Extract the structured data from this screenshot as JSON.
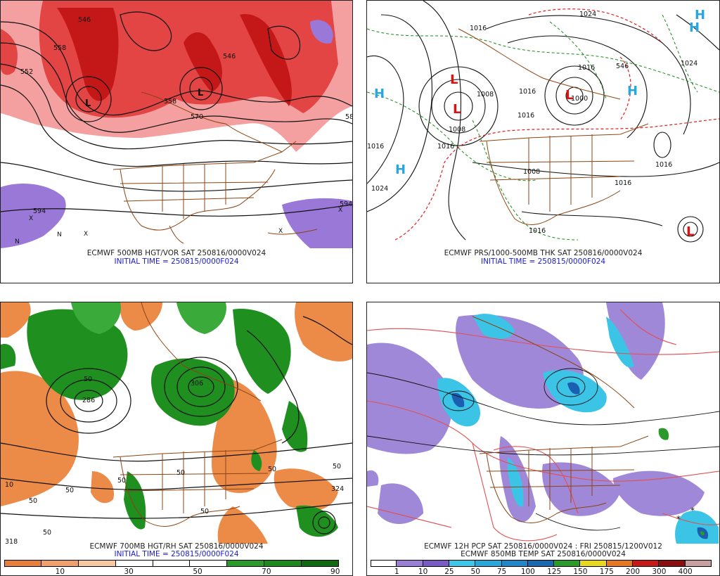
{
  "panels": {
    "p500": {
      "caption": "ECMWF 500MB HGT/VOR SAT 250816/0000V024",
      "initial": "INITIAL TIME = 250815/0000F024",
      "contour_labels": [
        "546",
        "558",
        "552",
        "546",
        "558",
        "570",
        "594",
        "594",
        "58"
      ],
      "hl_marks": [
        "L",
        "L",
        "X",
        "X",
        "N",
        "N",
        "X",
        "X"
      ]
    },
    "pmslp": {
      "caption": "ECMWF PRS/1000-500MB THK SAT 250816/0000V024",
      "initial": "INITIAL TIME = 250815/0000F024",
      "contour_labels": [
        "1024",
        "1016",
        "1016",
        "1008",
        "1024",
        "1016",
        "1016",
        "1016",
        "1016",
        "1000",
        "1008",
        "1016",
        "1008",
        "1016",
        "1016",
        "1024",
        "546"
      ],
      "hl_marks": [
        "H",
        "H",
        "H",
        "L",
        "L",
        "L",
        "H",
        "H",
        "L"
      ]
    },
    "p700": {
      "caption": "ECMWF 700MB HGT/RH SAT 250816/0000V024",
      "initial": "INITIAL TIME = 250815/0000F024",
      "contour_labels": [
        "10",
        "50",
        "50",
        "50",
        "50",
        "50",
        "50",
        "50",
        "324",
        "318",
        "50",
        "50",
        "286",
        "306"
      ],
      "colorbar_ticks": [
        "10",
        "30",
        "50",
        "70",
        "90"
      ],
      "colorbar_colors": [
        "#e8803c",
        "#f0a06c",
        "#f8c8a0",
        "#ffffff",
        "#ffffff",
        "#ffffff",
        "#2a9a2a",
        "#1e8a1e",
        "#0f6a0f"
      ]
    },
    "pcp": {
      "caption": "ECMWF 12H PCP SAT 250816/0000V024 : FRI 250815/1200V012",
      "caption2": "ECMWF 850MB TEMP SAT 250816/0000V024",
      "colorbar_ticks": [
        "1",
        "10",
        "25",
        "50",
        "75",
        "100",
        "125",
        "150",
        "175",
        "200",
        "300",
        "400"
      ],
      "colorbar_colors": [
        "#ffffff",
        "#9b7fd4",
        "#7a5bc4",
        "#3ec8e8",
        "#28a8d8",
        "#2088c8",
        "#1a68b0",
        "#2a9a2a",
        "#e8d820",
        "#e87820",
        "#c81818",
        "#8a0e0e",
        "#c8a0a0"
      ]
    }
  },
  "colors": {
    "vorticity_red": "#d42020",
    "vorticity_pink": "#f4a0a0",
    "vorticity_purple": "#8a60d0",
    "rh_green": "#1e8a1e",
    "rh_orange": "#e8803c",
    "borders_brown": "#8b4513",
    "precip_cyan": "#40c8e8",
    "precip_purple": "#9b7fd4",
    "temp_red": "#e05050",
    "high_blue": "#29a8e0",
    "low_red": "#e01010"
  }
}
